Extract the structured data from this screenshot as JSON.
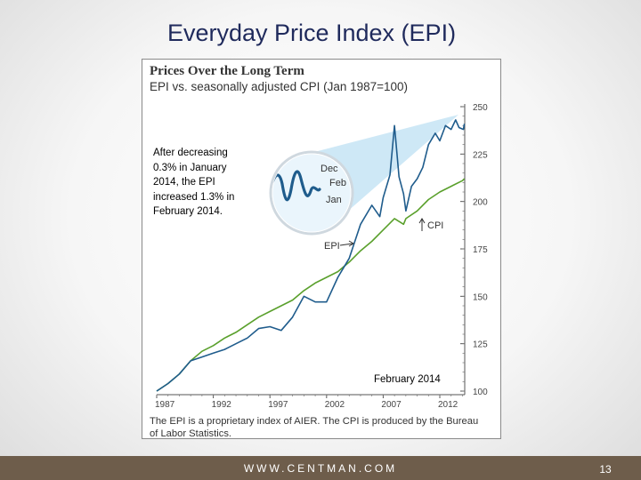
{
  "slide": {
    "title": "Everyday Price Index (EPI)",
    "footer_url": "WWW.CENTMAN.COM",
    "page_number": "13"
  },
  "figure": {
    "callout_text": "After decreasing 0.3% in January 2014, the EPI increased 1.3% in February 2014.",
    "highlight_label": "February 2014",
    "footnote": "The EPI is a proprietary index of AIER. The CPI is produced by the Bureau of Labor Statistics."
  },
  "colors": {
    "epi": "#1f5c8c",
    "cpi": "#5aa02c",
    "title": "#1f2a5c",
    "zoom_fill": "#c6e4f5",
    "bar": "#6e5d4b"
  },
  "chart_data": {
    "type": "line",
    "title": "Prices Over the Long Term",
    "subtitle": "EPI vs. seasonally adjusted CPI (Jan 1987=100)",
    "xlim": [
      1987,
      2014.2
    ],
    "ylim": [
      100,
      250
    ],
    "x_ticks": [
      1987,
      1992,
      1997,
      2002,
      2007,
      2012
    ],
    "y_ticks": [
      100,
      125,
      150,
      175,
      200,
      225,
      250
    ],
    "y_axis_side": "right",
    "series": [
      {
        "name": "EPI",
        "label": "EPI",
        "points": [
          [
            1987,
            100
          ],
          [
            1988,
            104
          ],
          [
            1989,
            109
          ],
          [
            1990,
            116
          ],
          [
            1991,
            118
          ],
          [
            1992,
            120
          ],
          [
            1993,
            122
          ],
          [
            1994,
            125
          ],
          [
            1995,
            128
          ],
          [
            1996,
            133
          ],
          [
            1997,
            134
          ],
          [
            1998,
            132
          ],
          [
            1999,
            139
          ],
          [
            2000,
            150
          ],
          [
            2001,
            147
          ],
          [
            2002,
            147
          ],
          [
            2003,
            160
          ],
          [
            2004,
            170
          ],
          [
            2005,
            188
          ],
          [
            2006,
            198
          ],
          [
            2006.7,
            192
          ],
          [
            2007,
            202
          ],
          [
            2007.6,
            214
          ],
          [
            2008,
            240
          ],
          [
            2008.4,
            213
          ],
          [
            2008.8,
            204
          ],
          [
            2009,
            195
          ],
          [
            2009.5,
            208
          ],
          [
            2010,
            212
          ],
          [
            2010.5,
            218
          ],
          [
            2011,
            230
          ],
          [
            2011.6,
            236
          ],
          [
            2012,
            232
          ],
          [
            2012.5,
            240
          ],
          [
            2013,
            238
          ],
          [
            2013.4,
            243
          ],
          [
            2013.7,
            239
          ],
          [
            2014.08,
            238
          ],
          [
            2014.17,
            241
          ]
        ]
      },
      {
        "name": "CPI",
        "label": "CPI",
        "points": [
          [
            1987,
            100
          ],
          [
            1988,
            104
          ],
          [
            1989,
            109
          ],
          [
            1990,
            116
          ],
          [
            1991,
            121
          ],
          [
            1992,
            124
          ],
          [
            1993,
            128
          ],
          [
            1994,
            131
          ],
          [
            1995,
            135
          ],
          [
            1996,
            139
          ],
          [
            1997,
            142
          ],
          [
            1998,
            145
          ],
          [
            1999,
            148
          ],
          [
            2000,
            153
          ],
          [
            2001,
            157
          ],
          [
            2002,
            160
          ],
          [
            2003,
            163
          ],
          [
            2004,
            168
          ],
          [
            2005,
            174
          ],
          [
            2006,
            179
          ],
          [
            2007,
            185
          ],
          [
            2008,
            191
          ],
          [
            2008.8,
            188
          ],
          [
            2009,
            191
          ],
          [
            2010,
            195
          ],
          [
            2011,
            201
          ],
          [
            2012,
            205
          ],
          [
            2013,
            208
          ],
          [
            2014,
            211
          ],
          [
            2014.17,
            212
          ]
        ]
      }
    ],
    "zoom_inset": {
      "labels": [
        "Dec",
        "Feb",
        "Jan"
      ]
    }
  }
}
